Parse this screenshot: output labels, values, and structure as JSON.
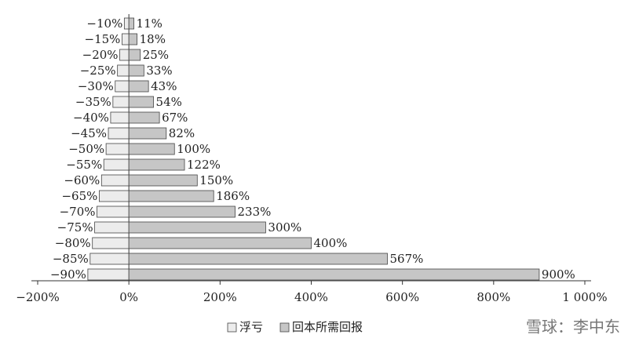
{
  "chart_data": {
    "type": "bar",
    "orientation": "horizontal",
    "series": [
      {
        "name": "浮亏",
        "color": "#ececec",
        "values": [
          -10,
          -15,
          -20,
          -25,
          -30,
          -35,
          -40,
          -45,
          -50,
          -55,
          -60,
          -65,
          -70,
          -75,
          -80,
          -85,
          -90
        ],
        "value_labels": [
          "−10%",
          "−15%",
          "−20%",
          "−25%",
          "−30%",
          "−35%",
          "−40%",
          "−45%",
          "−50%",
          "−55%",
          "−60%",
          "−65%",
          "−70%",
          "−75%",
          "−80%",
          "−85%",
          "−90%"
        ]
      },
      {
        "name": "回本所需回报",
        "color": "#c6c6c6",
        "values": [
          11,
          18,
          25,
          33,
          43,
          54,
          67,
          82,
          100,
          122,
          150,
          186,
          233,
          300,
          400,
          567,
          900
        ],
        "value_labels": [
          "11%",
          "18%",
          "25%",
          "33%",
          "43%",
          "54%",
          "67%",
          "82%",
          "100%",
          "122%",
          "150%",
          "186%",
          "233%",
          "300%",
          "400%",
          "567%",
          "900%"
        ]
      }
    ],
    "xlim": [
      -200,
      1000
    ],
    "xticks": [
      {
        "value": -200,
        "label": "−200%"
      },
      {
        "value": 0,
        "label": "0%"
      },
      {
        "value": 200,
        "label": "200%"
      },
      {
        "value": 400,
        "label": "400%"
      },
      {
        "value": 600,
        "label": "600%"
      },
      {
        "value": 800,
        "label": "800%"
      },
      {
        "value": 1000,
        "label": "1 000%"
      }
    ],
    "watermark": "雪球：李中东"
  }
}
